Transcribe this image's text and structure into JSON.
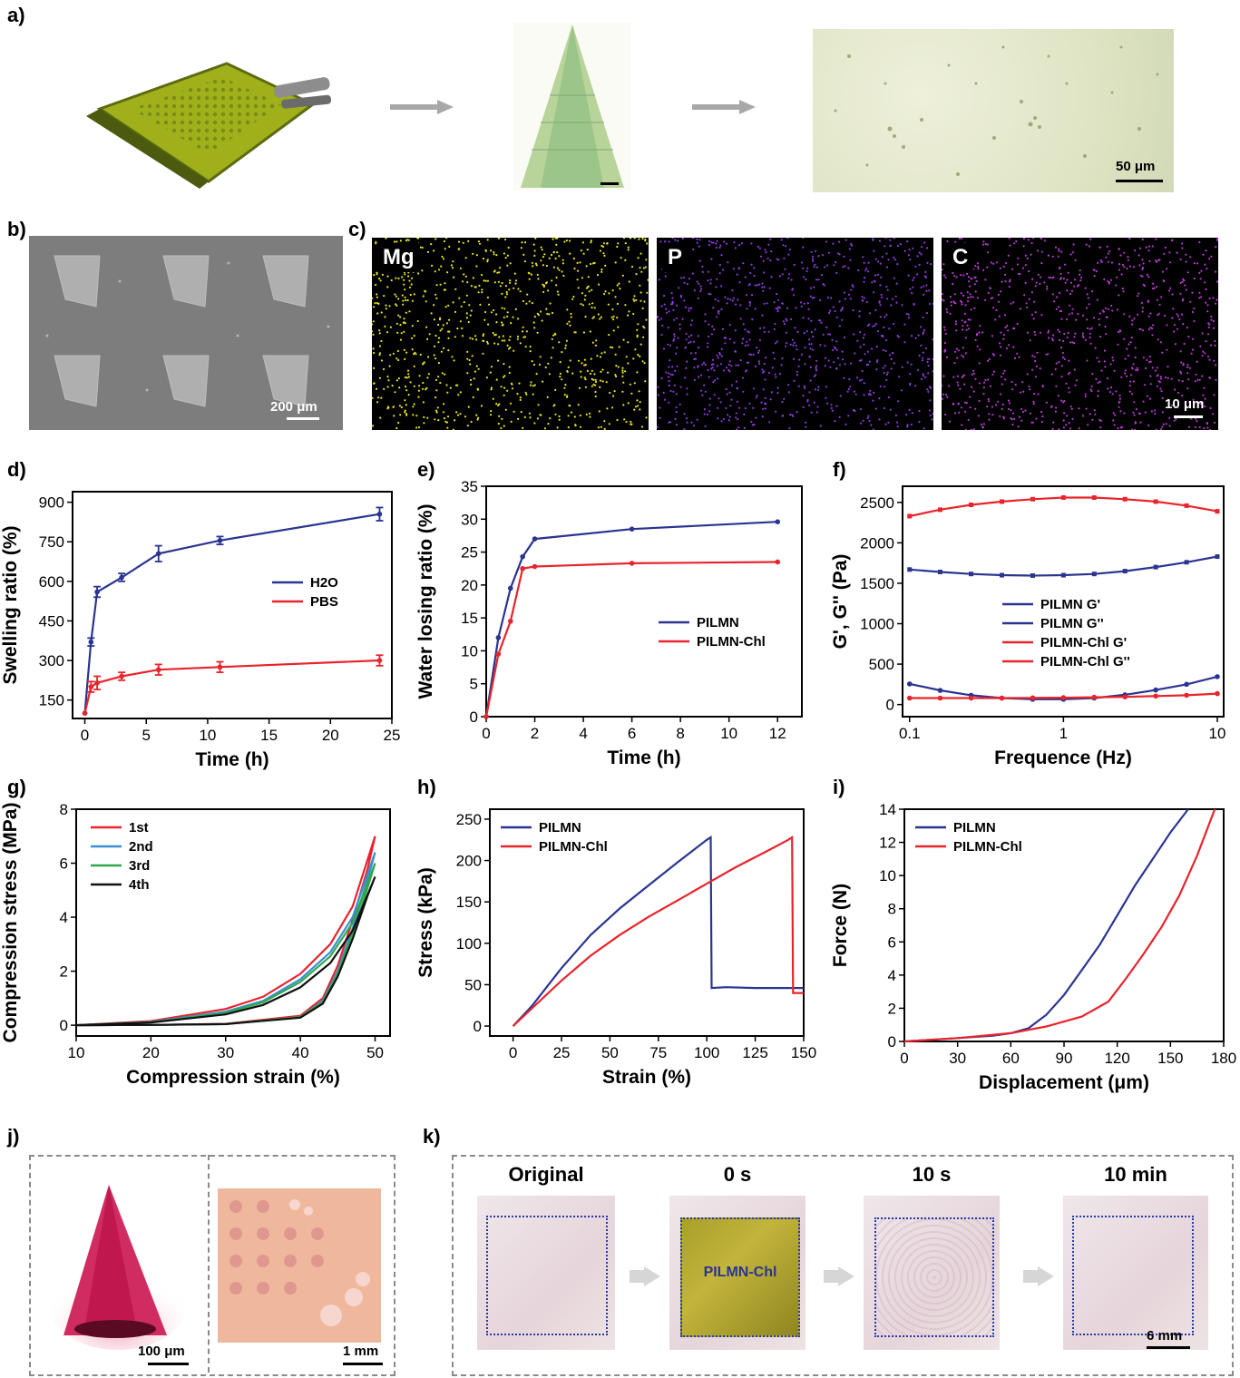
{
  "panel_labels": {
    "a": "a)",
    "b": "b)",
    "c": "c)",
    "d": "d)",
    "e": "e)",
    "f": "f)",
    "g": "g)",
    "h": "h)",
    "i": "i)",
    "j": "j)",
    "k": "k)"
  },
  "panel_a": {
    "scale": "50 μm"
  },
  "panel_b": {
    "scale": "200 μm"
  },
  "panel_c": {
    "elements": [
      "Mg",
      "P",
      "C"
    ],
    "scale": "10 μm",
    "colors": [
      "#e8e41a",
      "#8a3bd8",
      "#b43ad0"
    ]
  },
  "panel_j": {
    "scale_left": "100 μm",
    "scale_right": "1 mm"
  },
  "panel_k": {
    "titles": [
      "Original",
      "0 s",
      "10 s",
      "10 min"
    ],
    "patch_label": "PILMN-Chl",
    "scale": "6 mm"
  },
  "chart_data": [
    {
      "id": "d",
      "type": "line",
      "xlabel": "Time (h)",
      "ylabel": "Swelling ratio (%)",
      "xlim": [
        -1,
        25
      ],
      "ylim": [
        80,
        940
      ],
      "xticks": [
        0,
        5,
        10,
        15,
        20,
        25
      ],
      "yticks": [
        150,
        300,
        450,
        600,
        750,
        900
      ],
      "series": [
        {
          "name": "H2O",
          "color": "#2b3490",
          "x": [
            0,
            0.5,
            1,
            3,
            6,
            11,
            24
          ],
          "y": [
            100,
            370,
            560,
            615,
            705,
            755,
            855
          ],
          "err": [
            0,
            15,
            20,
            15,
            30,
            15,
            25
          ]
        },
        {
          "name": "PBS",
          "color": "#e8242c",
          "x": [
            0,
            0.5,
            1,
            3,
            6,
            11,
            24
          ],
          "y": [
            100,
            200,
            215,
            240,
            265,
            275,
            300
          ],
          "err": [
            0,
            20,
            25,
            15,
            20,
            20,
            20
          ]
        }
      ]
    },
    {
      "id": "e",
      "type": "line",
      "xlabel": "Time (h)",
      "ylabel": "Water losing ratio (%)",
      "xlim": [
        0,
        13
      ],
      "ylim": [
        0,
        35
      ],
      "xticks": [
        0,
        2,
        4,
        6,
        8,
        10,
        12
      ],
      "yticks": [
        0,
        5,
        10,
        15,
        20,
        25,
        30,
        35
      ],
      "series": [
        {
          "name": "PILMN",
          "color": "#2b3490",
          "x": [
            0,
            0.5,
            1,
            1.5,
            2,
            6,
            12
          ],
          "y": [
            0,
            12,
            19.5,
            24.3,
            27,
            28.5,
            29.6
          ]
        },
        {
          "name": "PILMN-Chl",
          "color": "#e8242c",
          "x": [
            0,
            0.5,
            1,
            1.5,
            2,
            6,
            12
          ],
          "y": [
            0,
            9.5,
            14.5,
            22.5,
            22.8,
            23.3,
            23.5
          ]
        }
      ]
    },
    {
      "id": "f",
      "type": "line",
      "scale_x": "log",
      "xlabel": "Frequence (Hz)",
      "ylabel": "G', G'' (Pa)",
      "xlim": [
        0.09,
        11
      ],
      "ylim": [
        -150,
        2700
      ],
      "xticks": [
        0.1,
        1,
        10
      ],
      "xticklabels": [
        "0.1",
        "1",
        "10"
      ],
      "yticks": [
        0,
        500,
        1000,
        1500,
        2000,
        2500
      ],
      "series": [
        {
          "name": "PILMN G'",
          "color": "#2b3490",
          "marker": "square",
          "x": [
            0.1,
            0.158,
            0.251,
            0.398,
            0.631,
            1,
            1.585,
            2.512,
            3.981,
            6.31,
            10
          ],
          "y": [
            1670,
            1640,
            1615,
            1600,
            1595,
            1600,
            1615,
            1650,
            1700,
            1760,
            1830
          ]
        },
        {
          "name": "PILMN G''",
          "color": "#2b3490",
          "marker": "circle",
          "x": [
            0.1,
            0.158,
            0.251,
            0.398,
            0.631,
            1,
            1.585,
            2.512,
            3.981,
            6.31,
            10
          ],
          "y": [
            255,
            175,
            115,
            80,
            65,
            65,
            80,
            120,
            180,
            250,
            345
          ]
        },
        {
          "name": "PILMN-Chl G'",
          "color": "#e8242c",
          "marker": "square",
          "x": [
            0.1,
            0.158,
            0.251,
            0.398,
            0.631,
            1,
            1.585,
            2.512,
            3.981,
            6.31,
            10
          ],
          "y": [
            2330,
            2410,
            2470,
            2510,
            2540,
            2560,
            2560,
            2540,
            2510,
            2460,
            2390
          ]
        },
        {
          "name": "PILMN-Chl G''",
          "color": "#e8242c",
          "marker": "circle",
          "x": [
            0.1,
            0.158,
            0.251,
            0.398,
            0.631,
            1,
            1.585,
            2.512,
            3.981,
            6.31,
            10
          ],
          "y": [
            80,
            80,
            80,
            80,
            82,
            85,
            90,
            95,
            105,
            115,
            135
          ]
        }
      ]
    },
    {
      "id": "g",
      "type": "line",
      "xlabel": "Compression strain (%)",
      "ylabel": "Compression stress (MPa)",
      "xlim": [
        10,
        52
      ],
      "ylim": [
        -0.4,
        8
      ],
      "xticks": [
        10,
        20,
        30,
        40,
        50
      ],
      "yticks": [
        0,
        2,
        4,
        6,
        8
      ],
      "series": [
        {
          "name": "1st",
          "color": "#e8242c",
          "x": [
            10,
            20,
            30,
            35,
            40,
            44,
            47,
            50,
            49,
            47,
            45,
            43,
            40,
            30,
            20,
            10
          ],
          "y": [
            0,
            0.15,
            0.6,
            1.05,
            1.9,
            3.0,
            4.4,
            7.0,
            5.8,
            3.9,
            2.2,
            1.0,
            0.35,
            0.05,
            0.01,
            0
          ]
        },
        {
          "name": "2nd",
          "color": "#3a8fd0",
          "x": [
            10,
            20,
            30,
            35,
            40,
            44,
            47,
            50,
            49,
            47,
            45,
            43,
            40,
            30,
            20,
            10
          ],
          "y": [
            0,
            0.12,
            0.5,
            0.9,
            1.7,
            2.7,
            4.0,
            6.4,
            5.4,
            3.6,
            2.0,
            0.9,
            0.3,
            0.04,
            0.01,
            0
          ]
        },
        {
          "name": "3rd",
          "color": "#2ea84a",
          "x": [
            10,
            20,
            30,
            35,
            40,
            44,
            47,
            50,
            49,
            47,
            45,
            43,
            40,
            30,
            20,
            10
          ],
          "y": [
            0,
            0.11,
            0.45,
            0.85,
            1.6,
            2.55,
            3.8,
            6.0,
            5.1,
            3.4,
            1.9,
            0.85,
            0.3,
            0.04,
            0.01,
            0
          ]
        },
        {
          "name": "4th",
          "color": "#111111",
          "x": [
            10,
            20,
            30,
            35,
            40,
            44,
            47,
            50,
            49,
            47,
            45,
            43,
            40,
            30,
            20,
            10
          ],
          "y": [
            0,
            0.1,
            0.4,
            0.75,
            1.4,
            2.3,
            3.5,
            5.5,
            4.8,
            3.2,
            1.8,
            0.8,
            0.28,
            0.04,
            0.01,
            0
          ]
        }
      ]
    },
    {
      "id": "h",
      "type": "line",
      "xlabel": "Strain (%)",
      "ylabel": "Stress (kPa)",
      "xlim": [
        -12,
        150
      ],
      "ylim": [
        -12,
        262
      ],
      "xticks": [
        0,
        25,
        50,
        75,
        100,
        125,
        150
      ],
      "yticks": [
        0,
        50,
        100,
        150,
        200,
        250
      ],
      "series": [
        {
          "name": "PILMN",
          "color": "#2b3490",
          "x": [
            0,
            10,
            25,
            40,
            55,
            70,
            85,
            100,
            102,
            102.5,
            110,
            125,
            150
          ],
          "y": [
            0,
            25,
            70,
            110,
            142,
            170,
            198,
            225,
            228,
            46,
            47,
            46,
            46
          ]
        },
        {
          "name": "PILMN-Chl",
          "color": "#e8242c",
          "x": [
            0,
            10,
            25,
            40,
            55,
            70,
            85,
            100,
            115,
            130,
            142,
            144,
            144.5,
            150
          ],
          "y": [
            0,
            22,
            55,
            85,
            110,
            132,
            152,
            172,
            192,
            210,
            225,
            228,
            40,
            40
          ]
        }
      ]
    },
    {
      "id": "i",
      "type": "line",
      "xlabel": "Displacement (μm)",
      "ylabel": "Force (N)",
      "xlim": [
        0,
        180
      ],
      "ylim": [
        0,
        14
      ],
      "xticks": [
        0,
        30,
        60,
        90,
        120,
        150,
        180
      ],
      "yticks": [
        0,
        2,
        4,
        6,
        8,
        10,
        12,
        14
      ],
      "series": [
        {
          "name": "PILMN",
          "color": "#2b3490",
          "x": [
            0,
            30,
            50,
            60,
            70,
            80,
            90,
            100,
            110,
            120,
            130,
            140,
            150,
            160
          ],
          "y": [
            0,
            0.2,
            0.35,
            0.5,
            0.8,
            1.6,
            2.8,
            4.3,
            5.8,
            7.6,
            9.4,
            11,
            12.6,
            14
          ]
        },
        {
          "name": "PILMN-Chl",
          "color": "#e8242c",
          "x": [
            0,
            30,
            60,
            80,
            100,
            115,
            125,
            135,
            145,
            155,
            165,
            175
          ],
          "y": [
            0,
            0.2,
            0.5,
            0.9,
            1.5,
            2.4,
            3.8,
            5.3,
            6.9,
            8.8,
            11.2,
            14
          ]
        }
      ]
    }
  ]
}
